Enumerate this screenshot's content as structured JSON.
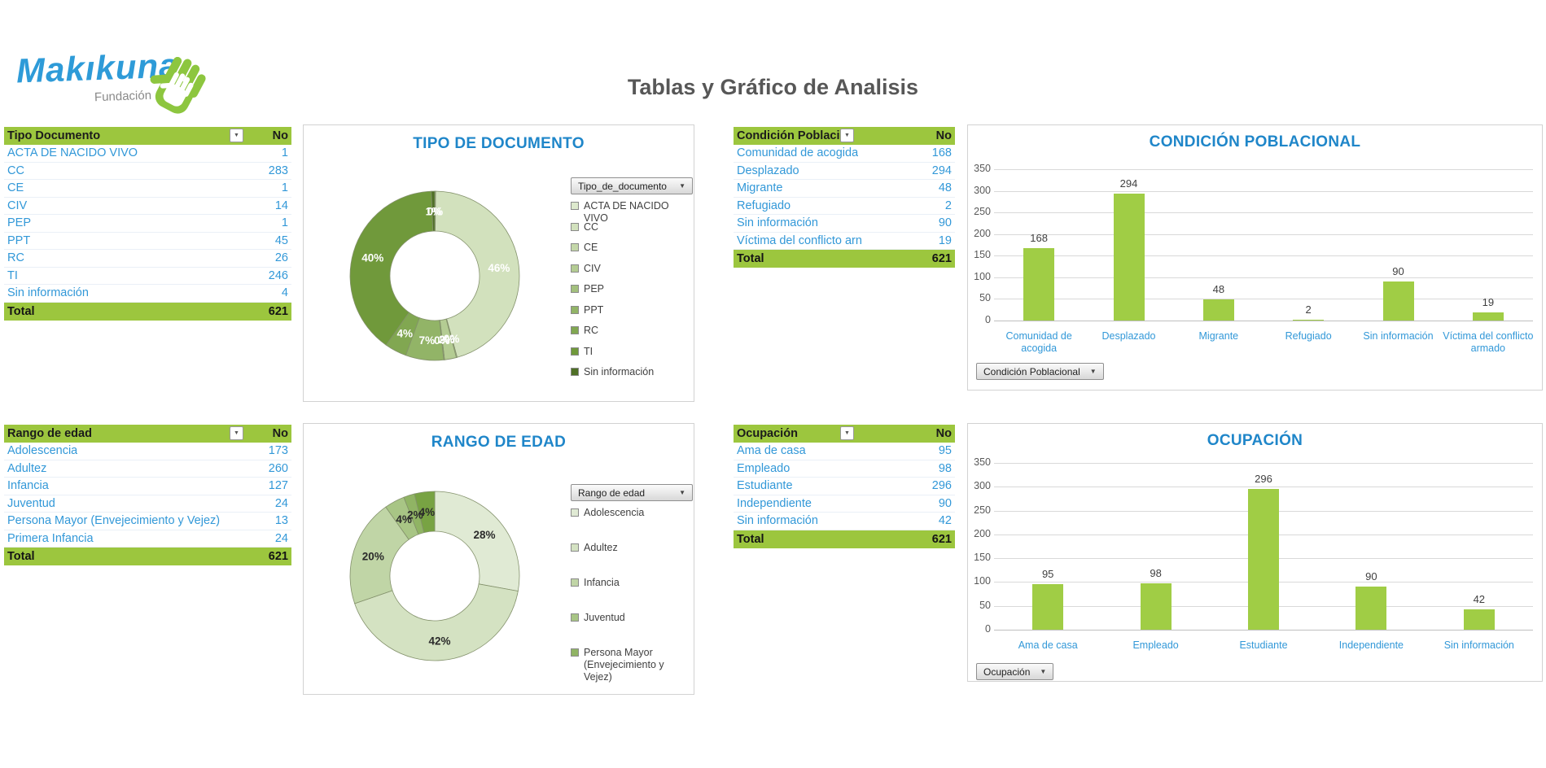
{
  "logo": {
    "brand": "Makıkuna",
    "sub": "Fundación"
  },
  "page_title": "Tablas y Gráfico de Analisis",
  "colors": {
    "accent_green": "#9CC63E",
    "bar_green": "#A0CD45",
    "link_blue": "#3298D8",
    "chart_title_blue": "#1F86C9",
    "title_gray": "#575757"
  },
  "tables": [
    {
      "header": "Tipo Documento",
      "count_col": "No",
      "total_label": "Total",
      "total": "621",
      "rows": [
        {
          "label": "ACTA DE NACIDO VIVO",
          "value": "1"
        },
        {
          "label": "CC",
          "value": "283"
        },
        {
          "label": "CE",
          "value": "1"
        },
        {
          "label": "CIV",
          "value": "14"
        },
        {
          "label": "PEP",
          "value": "1"
        },
        {
          "label": "PPT",
          "value": "45"
        },
        {
          "label": "RC",
          "value": "26"
        },
        {
          "label": "TI",
          "value": "246"
        },
        {
          "label": "Sin información",
          "value": "4"
        }
      ]
    },
    {
      "header": "Condición Poblacional",
      "count_col": "No",
      "total_label": "Total",
      "total": "621",
      "rows": [
        {
          "label": "Comunidad de acogida",
          "value": "168"
        },
        {
          "label": "Desplazado",
          "value": "294"
        },
        {
          "label": "Migrante",
          "value": "48"
        },
        {
          "label": "Refugiado",
          "value": "2"
        },
        {
          "label": "Sin información",
          "value": "90"
        },
        {
          "label": "Víctima del conflicto arn",
          "value": "19"
        }
      ]
    },
    {
      "header": "Rango de edad",
      "count_col": "No",
      "total_label": "Total",
      "total": "621",
      "rows": [
        {
          "label": "Adolescencia",
          "value": "173"
        },
        {
          "label": "Adultez",
          "value": "260"
        },
        {
          "label": "Infancia",
          "value": "127"
        },
        {
          "label": "Juventud",
          "value": "24"
        },
        {
          "label": "Persona Mayor (Envejecimiento y Vejez)",
          "value": "13"
        },
        {
          "label": "Primera Infancia",
          "value": "24"
        }
      ]
    },
    {
      "header": "Ocupación",
      "count_col": "No",
      "total_label": "Total",
      "total": "621",
      "rows": [
        {
          "label": "Ama de casa",
          "value": "95"
        },
        {
          "label": "Empleado",
          "value": "98"
        },
        {
          "label": "Estudiante",
          "value": "296"
        },
        {
          "label": "Independiente",
          "value": "90"
        },
        {
          "label": "Sin información",
          "value": "42"
        }
      ]
    }
  ],
  "chart_data": [
    {
      "type": "donut",
      "title": "TIPO DE DOCUMENTO",
      "filter_button": "Tipo_de_documento",
      "categories": [
        "ACTA DE NACIDO VIVO",
        "CC",
        "CE",
        "CIV",
        "PEP",
        "PPT",
        "RC",
        "TI",
        "Sin información"
      ],
      "values": [
        1,
        283,
        1,
        14,
        1,
        45,
        26,
        246,
        4
      ],
      "percent_labels": [
        "0%",
        "46%",
        "0%",
        "2%",
        "0%",
        "7%",
        "4%",
        "40%",
        "1%"
      ],
      "colors": [
        "#DDE9CD",
        "#D2E1BD",
        "#C4D7A9",
        "#B4CC93",
        "#A3C07D",
        "#92B467",
        "#81A751",
        "#70993B",
        "#4F7026"
      ],
      "label_color": "#FFFFFF",
      "legend_position": "right",
      "legend_max_items": 9
    },
    {
      "type": "bar",
      "title": "CONDICIÓN POBLACIONAL",
      "filter_button": "Condición Poblacional",
      "categories": [
        "Comunidad de acogida",
        "Desplazado",
        "Migrante",
        "Refugiado",
        "Sin información",
        "Víctima del conflicto armado"
      ],
      "values": [
        168,
        294,
        48,
        2,
        90,
        19
      ],
      "ylim": [
        0,
        350
      ],
      "ytick_step": 50,
      "grid": true,
      "legend_position": "none"
    },
    {
      "type": "donut",
      "title": "RANGO DE EDAD",
      "filter_button": "Rango de edad",
      "categories": [
        "Adolescencia",
        "Adultez",
        "Infancia",
        "Juventud",
        "Persona Mayor (Envejecimiento y Vejez)",
        "Primera Infancia"
      ],
      "values": [
        173,
        260,
        127,
        24,
        13,
        24
      ],
      "percent_labels": [
        "28%",
        "42%",
        "20%",
        "4%",
        "2%",
        "4%"
      ],
      "colors": [
        "#E0EAD4",
        "#D4E2C2",
        "#C0D5A6",
        "#A8C585",
        "#90B464",
        "#78A343"
      ],
      "label_color": "#2b2b2b",
      "legend_position": "right",
      "legend_max_items": 5
    },
    {
      "type": "bar",
      "title": "OCUPACIÓN",
      "filter_button": "Ocupación",
      "categories": [
        "Ama de casa",
        "Empleado",
        "Estudiante",
        "Independiente",
        "Sin información"
      ],
      "values": [
        95,
        98,
        296,
        90,
        42
      ],
      "ylim": [
        0,
        350
      ],
      "ytick_step": 50,
      "grid": true,
      "legend_position": "none"
    }
  ]
}
